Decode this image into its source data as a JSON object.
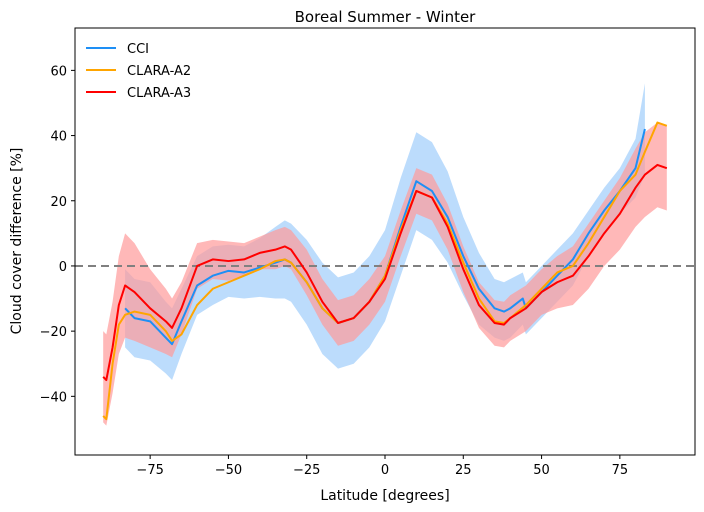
{
  "chart_data": {
    "type": "line",
    "title": "Boreal Summer - Winter",
    "xlabel": "Latitude [degrees]",
    "ylabel": "Cloud cover difference [%]",
    "xlim": [
      -99,
      99
    ],
    "ylim": [
      -58,
      73
    ],
    "xticks": [
      -75,
      -50,
      -25,
      0,
      25,
      50,
      75
    ],
    "yticks": [
      -40,
      -20,
      0,
      20,
      40,
      60
    ],
    "xtick_labels": [
      "−75",
      "−50",
      "−25",
      "0",
      "25",
      "50",
      "75"
    ],
    "ytick_labels": [
      "−40",
      "−20",
      "0",
      "20",
      "40",
      "60"
    ],
    "reference_line": {
      "y": 0,
      "style": "dashed",
      "color": "#808080"
    },
    "legend": {
      "placement": "top-left"
    },
    "series": [
      {
        "name": "CCI",
        "color": "#1e8ff5",
        "band_color": "#9fcdfb",
        "x": [
          -83,
          -80,
          -75,
          -70,
          -68,
          -65,
          -60,
          -55,
          -50,
          -45,
          -40,
          -35,
          -32,
          -30,
          -25,
          -20,
          -15,
          -10,
          -5,
          0,
          5,
          10,
          15,
          20,
          25,
          30,
          35,
          38,
          40,
          44,
          45,
          50,
          55,
          60,
          65,
          70,
          75,
          80,
          83
        ],
        "y": [
          -13,
          -16,
          -17,
          -22,
          -24,
          -17,
          -6,
          -3,
          -1.5,
          -2,
          -0.5,
          1,
          2,
          1,
          -5,
          -13,
          -17.5,
          -16,
          -11,
          -3,
          12,
          26,
          23,
          15,
          3,
          -7,
          -13,
          -14,
          -13,
          -10,
          -13,
          -8,
          -3,
          2,
          10,
          17,
          23,
          30,
          42
        ],
        "band_halfwidth": [
          12,
          12,
          12,
          11,
          11,
          10,
          9,
          9,
          8,
          8,
          9,
          11,
          12,
          12,
          13,
          14,
          14,
          14,
          14,
          14,
          15,
          15,
          15,
          14,
          12,
          11,
          9,
          9,
          9,
          8,
          8,
          8,
          8,
          8,
          7,
          7,
          7,
          9,
          14
        ]
      },
      {
        "name": "CLARA-A2",
        "color": "#ffa500",
        "x": [
          -90,
          -89,
          -87,
          -85,
          -83,
          -80,
          -75,
          -70,
          -68,
          -65,
          -60,
          -55,
          -50,
          -45,
          -40,
          -35,
          -32,
          -30,
          -25,
          -20,
          -15,
          -10,
          -5,
          0,
          5,
          10,
          15,
          20,
          25,
          30,
          35,
          38,
          40,
          45,
          50,
          55,
          60,
          65,
          70,
          75,
          80,
          83,
          87,
          90
        ],
        "y": [
          -46,
          -47,
          -30,
          -18,
          -15,
          -14,
          -15,
          -20,
          -23,
          -21,
          -12,
          -7,
          -5,
          -3,
          -1,
          1.5,
          2,
          1,
          -5,
          -13,
          -17.5,
          -16,
          -11,
          -3,
          11,
          23,
          21,
          13,
          1,
          -10,
          -17,
          -17.5,
          -16,
          -12,
          -7,
          -2,
          0,
          7,
          15,
          23,
          28,
          35,
          44,
          43
        ]
      },
      {
        "name": "CLARA-A3",
        "color": "#ff0000",
        "band_color": "#ff9a9a",
        "x": [
          -90,
          -89,
          -87,
          -85,
          -83,
          -80,
          -75,
          -70,
          -68,
          -65,
          -60,
          -55,
          -50,
          -45,
          -40,
          -35,
          -32,
          -30,
          -25,
          -20,
          -15,
          -10,
          -5,
          0,
          5,
          10,
          15,
          20,
          25,
          30,
          35,
          38,
          40,
          45,
          50,
          55,
          60,
          65,
          70,
          75,
          80,
          83,
          87,
          90
        ],
        "y": [
          -34,
          -35,
          -25,
          -12,
          -6,
          -8,
          -13,
          -17,
          -19,
          -13,
          0,
          2,
          1.5,
          2,
          4,
          5,
          6,
          5,
          -2,
          -11,
          -17.5,
          -16,
          -11,
          -4,
          10,
          23,
          21,
          12,
          -1,
          -12,
          -17.5,
          -18,
          -16,
          -13,
          -8,
          -5,
          -3,
          3,
          10,
          16,
          24,
          28,
          31,
          30
        ],
        "band_halfwidth": [
          14,
          14,
          14,
          15,
          16,
          15,
          12,
          10,
          9,
          8,
          7,
          6,
          6,
          5,
          5,
          6,
          6,
          6,
          7,
          7,
          7,
          7,
          7,
          7,
          7,
          7,
          7,
          7,
          7,
          7,
          7,
          7,
          7,
          7,
          7,
          8,
          9,
          10,
          10,
          11,
          12,
          13,
          13,
          13
        ]
      }
    ]
  }
}
